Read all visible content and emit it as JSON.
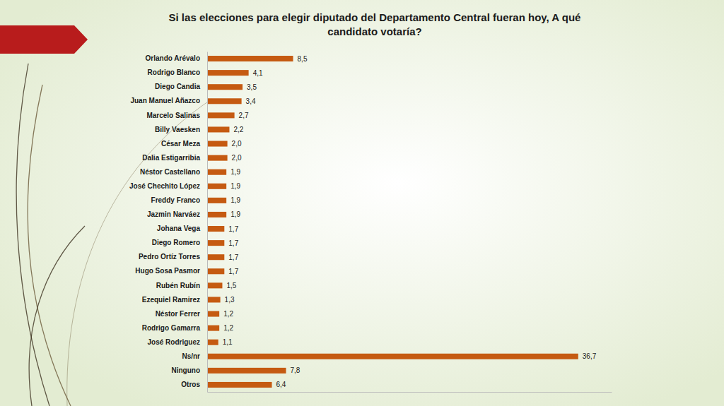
{
  "chart_data": {
    "type": "bar",
    "orientation": "horizontal",
    "title": "Si las elecciones para elegir diputado del Departamento Central fueran hoy, A qué candidato votaría?",
    "categories": [
      "Orlando Arévalo",
      "Rodrigo Blanco",
      "Diego Candia",
      "Juan Manuel Añazco",
      "Marcelo Salinas",
      "Billy Vaesken",
      "César Meza",
      "Dalia Estigarribia",
      "Néstor Castellano",
      "José Chechito López",
      "Freddy Franco",
      "Jazmin Narváez",
      "Johana Vega",
      "Diego Romero",
      "Pedro Ortíz Torres",
      "Hugo Sosa Pasmor",
      "Rubén Rubín",
      "Ezequiel Ramirez",
      "Néstor Ferrer",
      "Rodrigo Gamarra",
      "José Rodriguez",
      "Ns/nr",
      "Ninguno",
      "Otros"
    ],
    "values": [
      8.5,
      4.1,
      3.5,
      3.4,
      2.7,
      2.2,
      2.0,
      2.0,
      1.9,
      1.9,
      1.9,
      1.9,
      1.7,
      1.7,
      1.7,
      1.7,
      1.5,
      1.3,
      1.2,
      1.2,
      1.1,
      36.7,
      7.8,
      6.4
    ],
    "value_labels": [
      "8,5",
      "4,1",
      "3,5",
      "3,4",
      "2,7",
      "2,2",
      "2,0",
      "2,0",
      "1,9",
      "1,9",
      "1,9",
      "1,9",
      "1,7",
      "1,7",
      "1,7",
      "1,7",
      "1,5",
      "1,3",
      "1,2",
      "1,2",
      "1,1",
      "36,7",
      "7,8",
      "6,4"
    ],
    "color": "#c55a11",
    "xlim": [
      0,
      40
    ],
    "xticks": [],
    "grid": false,
    "data_labels": true,
    "tick_labels": "y"
  }
}
